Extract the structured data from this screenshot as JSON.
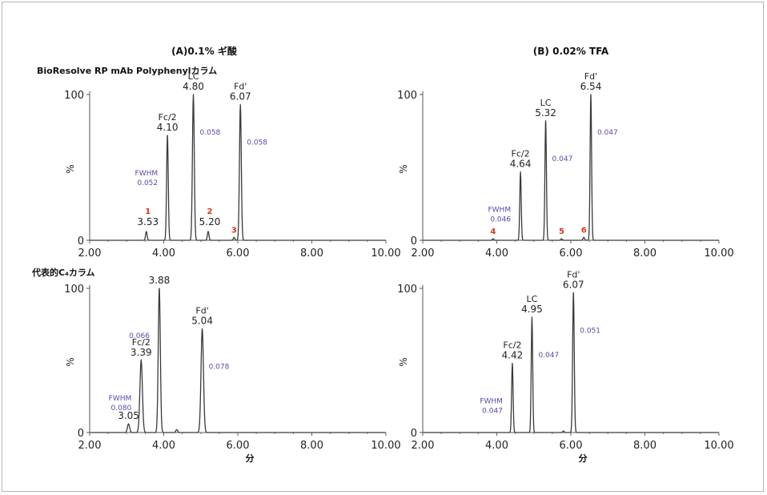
{
  "headers": {
    "condition_a": "(A)0.1% ギ酸",
    "condition_b": "(B) 0.02% TFA",
    "row1_column": "BioResolve RP mAb Polyphenylカラム",
    "row2_column": "代表的C₄カラム",
    "x_unit": "分"
  },
  "colors": {
    "trace": "#3a3a3a",
    "fwhm_text": "#5a4aa8",
    "impurity_text": "#d23b1f"
  },
  "chart_data": [
    {
      "type": "line",
      "id": "A1",
      "xlim": [
        2.0,
        10.0
      ],
      "ylim": [
        0,
        100
      ],
      "xticks": [
        "2.00",
        "4.00",
        "6.00",
        "8.00",
        "10.00"
      ],
      "yticks": [
        "0",
        "100"
      ],
      "ylabel": "%",
      "xlabel": "",
      "peaks": [
        {
          "rt": 3.53,
          "height": 6,
          "fwhm": 0.05
        },
        {
          "rt": 4.1,
          "height": 72,
          "fwhm": 0.052
        },
        {
          "rt": 4.8,
          "height": 100,
          "fwhm": 0.058
        },
        {
          "rt": 5.2,
          "height": 6,
          "fwhm": 0.05
        },
        {
          "rt": 5.9,
          "height": 2,
          "fwhm": 0.05
        },
        {
          "rt": 6.07,
          "height": 93,
          "fwhm": 0.058
        }
      ],
      "annotations": [
        {
          "rt": 4.1,
          "name": "Fc/2",
          "value": "4.10",
          "fwhm_label": "FWHM",
          "fwhm_value": "0.052",
          "fwhm_side": "left"
        },
        {
          "rt": 4.8,
          "name": "LC",
          "value": "4.80",
          "fwhm_value": "0.058",
          "fwhm_side": "right"
        },
        {
          "rt": 6.07,
          "name": "Fd'",
          "value": "6.07",
          "fwhm_value": "0.058",
          "fwhm_side": "right"
        },
        {
          "rt": 3.53,
          "impurity": "1",
          "value": "3.53"
        },
        {
          "rt": 5.2,
          "impurity": "2",
          "value": "5.20"
        },
        {
          "rt": 5.9,
          "impurity": "3"
        }
      ]
    },
    {
      "type": "line",
      "id": "B1",
      "xlim": [
        2.0,
        10.0
      ],
      "ylim": [
        0,
        100
      ],
      "xticks": [
        "2.00",
        "4.00",
        "6.00",
        "8.00",
        "10.00"
      ],
      "yticks": [
        "0",
        "100"
      ],
      "ylabel": "%",
      "xlabel": "",
      "peaks": [
        {
          "rt": 3.9,
          "height": 1,
          "fwhm": 0.05
        },
        {
          "rt": 4.64,
          "height": 47,
          "fwhm": 0.046
        },
        {
          "rt": 5.32,
          "height": 82,
          "fwhm": 0.047
        },
        {
          "rt": 5.75,
          "height": 1,
          "fwhm": 0.05
        },
        {
          "rt": 6.35,
          "height": 2,
          "fwhm": 0.05
        },
        {
          "rt": 6.54,
          "height": 100,
          "fwhm": 0.047
        }
      ],
      "annotations": [
        {
          "rt": 4.64,
          "name": "Fc/2",
          "value": "4.64",
          "fwhm_label": "FWHM",
          "fwhm_value": "0.046",
          "fwhm_side": "left"
        },
        {
          "rt": 5.32,
          "name": "LC",
          "value": "5.32",
          "fwhm_value": "0.047",
          "fwhm_side": "right"
        },
        {
          "rt": 6.54,
          "name": "Fd'",
          "value": "6.54",
          "fwhm_value": "0.047",
          "fwhm_side": "right"
        },
        {
          "rt": 3.9,
          "impurity": "4"
        },
        {
          "rt": 5.75,
          "impurity": "5"
        },
        {
          "rt": 6.35,
          "impurity": "6"
        }
      ]
    },
    {
      "type": "line",
      "id": "A2",
      "xlim": [
        2.0,
        10.0
      ],
      "ylim": [
        0,
        100
      ],
      "xticks": [
        "2.00",
        "4.00",
        "6.00",
        "8.00",
        "10.00"
      ],
      "yticks": [
        "0",
        "100"
      ],
      "ylabel": "%",
      "xlabel": "分",
      "peaks": [
        {
          "rt": 3.05,
          "height": 6,
          "fwhm": 0.07
        },
        {
          "rt": 3.39,
          "height": 50,
          "fwhm": 0.08
        },
        {
          "rt": 3.88,
          "height": 100,
          "fwhm": 0.066
        },
        {
          "rt": 4.35,
          "height": 2,
          "fwhm": 0.06
        },
        {
          "rt": 5.04,
          "height": 72,
          "fwhm": 0.078
        }
      ],
      "annotations": [
        {
          "rt": 3.39,
          "name": "Fc/2",
          "value": "3.39",
          "fwhm_label": "FWHM",
          "fwhm_value": "0.080",
          "fwhm_side": "left"
        },
        {
          "rt": 3.88,
          "value": "3.88",
          "fwhm_value": "0.066",
          "fwhm_side": "left"
        },
        {
          "rt": 5.04,
          "name": "Fd'",
          "value": "5.04",
          "fwhm_value": "0.078",
          "fwhm_side": "right"
        },
        {
          "rt": 3.05,
          "value": "3.05"
        }
      ]
    },
    {
      "type": "line",
      "id": "B2",
      "xlim": [
        2.0,
        10.0
      ],
      "ylim": [
        0,
        100
      ],
      "xticks": [
        "2.00",
        "4.00",
        "6.00",
        "8.00",
        "10.00"
      ],
      "yticks": [
        "0",
        "100"
      ],
      "ylabel": "%",
      "xlabel": "分",
      "peaks": [
        {
          "rt": 4.42,
          "height": 48,
          "fwhm": 0.047
        },
        {
          "rt": 4.95,
          "height": 80,
          "fwhm": 0.047
        },
        {
          "rt": 5.8,
          "height": 1,
          "fwhm": 0.05
        },
        {
          "rt": 6.07,
          "height": 97,
          "fwhm": 0.051
        }
      ],
      "annotations": [
        {
          "rt": 4.42,
          "name": "Fc/2",
          "value": "4.42",
          "fwhm_label": "FWHM",
          "fwhm_value": "0.047",
          "fwhm_side": "left"
        },
        {
          "rt": 4.95,
          "name": "LC",
          "value": "4.95",
          "fwhm_value": "0.047",
          "fwhm_side": "right"
        },
        {
          "rt": 6.07,
          "name": "Fd'",
          "value": "6.07",
          "fwhm_value": "0.051",
          "fwhm_side": "right"
        }
      ]
    }
  ]
}
